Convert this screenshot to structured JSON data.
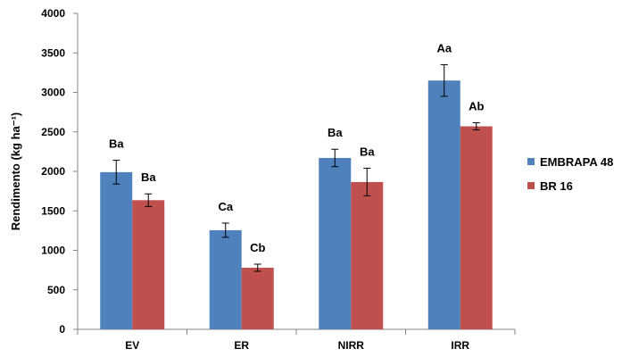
{
  "chart_data": {
    "type": "bar",
    "categories": [
      "EV",
      "ER",
      "NIRR",
      "IRR"
    ],
    "ylabel": "Rendimento (kg ha⁻¹)",
    "ylim": [
      0,
      4000
    ],
    "yticks": [
      0,
      500,
      1000,
      1500,
      2000,
      2500,
      3000,
      3500,
      4000
    ],
    "grid": false,
    "legend_position": "right",
    "series": [
      {
        "name": "EMBRAPA 48",
        "color": "#4f81bd",
        "values": [
          1990,
          1255,
          2170,
          3150
        ],
        "errors": [
          150,
          90,
          110,
          200
        ],
        "labels": [
          "Ba",
          "Ca",
          "Ba",
          "Aa"
        ]
      },
      {
        "name": "BR 16",
        "color": "#c0504d",
        "values": [
          1635,
          780,
          1865,
          2570
        ],
        "errors": [
          80,
          45,
          175,
          45
        ],
        "labels": [
          "Ba",
          "Cb",
          "Ba",
          "Ab"
        ]
      }
    ]
  }
}
